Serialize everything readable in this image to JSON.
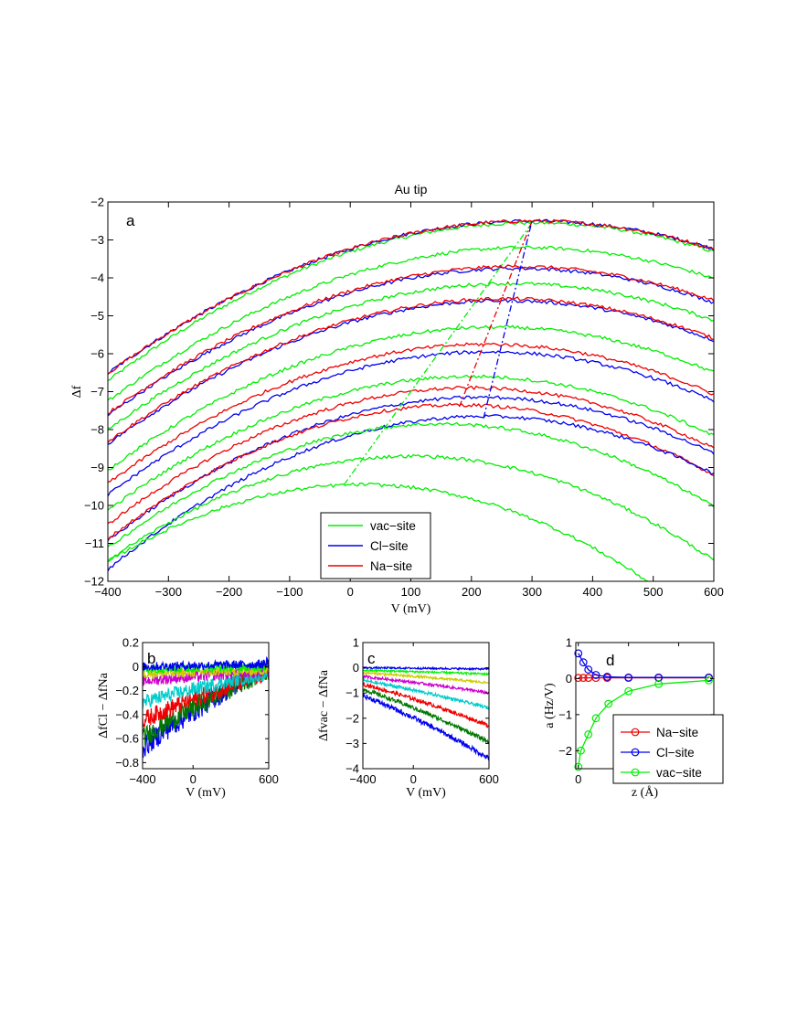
{
  "colors": {
    "vac": "#00ee00",
    "cl": "#0000ee",
    "na": "#ee0000",
    "extra1": "#00cccc",
    "extra2": "#cc00cc",
    "extra3": "#cccc00",
    "extra4": "#007700"
  },
  "chart_data": [
    {
      "id": "a",
      "type": "line",
      "title": "Au tip",
      "panel_letter": "a",
      "xlabel": "V (mV)",
      "ylabel": "Δf",
      "xlim": [
        -400,
        600
      ],
      "ylim": [
        -12,
        -2
      ],
      "xticks": [
        "−400",
        "−300",
        "−200",
        "−100",
        "0",
        "100",
        "200",
        "300",
        "400",
        "500",
        "600"
      ],
      "yticks": [
        "−2",
        "−3",
        "−4",
        "−5",
        "−6",
        "−7",
        "−8",
        "−9",
        "−10",
        "−11",
        "−12"
      ],
      "legend_position": "bottom-center",
      "legend": [
        "vac−site",
        "Cl−site",
        "Na−site"
      ],
      "curves": [
        {
          "site": "vac",
          "peak_v": 300,
          "peak_df": -2.55,
          "curv": 8.5e-06
        },
        {
          "site": "cl",
          "peak_v": 300,
          "peak_df": -2.5,
          "curv": 8.2e-06
        },
        {
          "site": "na",
          "peak_v": 300,
          "peak_df": -2.5,
          "curv": 8.2e-06
        },
        {
          "site": "vac",
          "peak_v": 290,
          "peak_df": -3.2,
          "curv": 8.5e-06
        },
        {
          "site": "cl",
          "peak_v": 275,
          "peak_df": -3.75,
          "curv": 8.5e-06
        },
        {
          "site": "na",
          "peak_v": 275,
          "peak_df": -3.7,
          "curv": 8.5e-06
        },
        {
          "site": "vac",
          "peak_v": 265,
          "peak_df": -4.15,
          "curv": 8.7e-06
        },
        {
          "site": "cl",
          "peak_v": 255,
          "peak_df": -4.6,
          "curv": 8.8e-06
        },
        {
          "site": "na",
          "peak_v": 255,
          "peak_df": -4.55,
          "curv": 8.8e-06
        },
        {
          "site": "vac",
          "peak_v": 240,
          "peak_df": -5.3,
          "curv": 9.2e-06
        },
        {
          "site": "cl",
          "peak_v": 230,
          "peak_df": -5.95,
          "curv": 9.5e-06
        },
        {
          "site": "na",
          "peak_v": 225,
          "peak_df": -5.75,
          "curv": 9.4e-06
        },
        {
          "site": "vac",
          "peak_v": 200,
          "peak_df": -6.6,
          "curv": 9.8e-06
        },
        {
          "site": "na",
          "peak_v": 200,
          "peak_df": -6.9,
          "curv": 1e-05
        },
        {
          "site": "cl",
          "peak_v": 215,
          "peak_df": -7.15,
          "curv": 1e-05
        },
        {
          "site": "na",
          "peak_v": 180,
          "peak_df": -7.35,
          "curv": 1.05e-05
        },
        {
          "site": "cl",
          "peak_v": 220,
          "peak_df": -7.65,
          "curv": 1.05e-05
        },
        {
          "site": "vac",
          "peak_v": 150,
          "peak_df": -7.85,
          "curv": 1.08e-05
        },
        {
          "site": "vac",
          "peak_v": 100,
          "peak_df": -8.7,
          "curv": 1.1e-05
        },
        {
          "site": "vac",
          "peak_v": 20,
          "peak_df": -9.45,
          "curv": 1.15e-05
        }
      ],
      "peak_lines": [
        {
          "site": "vac",
          "x": [
            -10,
            300
          ],
          "y": [
            -9.45,
            -2.55
          ]
        },
        {
          "site": "na",
          "x": [
            180,
            300
          ],
          "y": [
            -7.4,
            -2.5
          ]
        },
        {
          "site": "cl",
          "x": [
            220,
            300
          ],
          "y": [
            -7.7,
            -2.5
          ]
        }
      ]
    },
    {
      "id": "b",
      "type": "line",
      "panel_letter": "b",
      "xlabel": "V (mV)",
      "ylabel": "ΔfCl − ΔfNa",
      "xlim": [
        -400,
        600
      ],
      "ylim": [
        -0.85,
        0.2
      ],
      "xticks": [
        "−400",
        "0",
        "600"
      ],
      "yticks": [
        "0.2",
        "0",
        "−0.2",
        "−0.4",
        "−0.6",
        "−0.8"
      ],
      "curves": [
        {
          "color": "cl",
          "y_at_min": -0.68,
          "y_at_max": 0.02
        },
        {
          "color": "extra4",
          "y_at_min": -0.6,
          "y_at_max": -0.02
        },
        {
          "color": "na",
          "y_at_min": -0.45,
          "y_at_max": -0.05
        },
        {
          "color": "extra1",
          "y_at_min": -0.3,
          "y_at_max": -0.05
        },
        {
          "color": "extra2",
          "y_at_min": -0.12,
          "y_at_max": -0.04
        },
        {
          "color": "extra3",
          "y_at_min": -0.06,
          "y_at_max": -0.03
        },
        {
          "color": "vac",
          "y_at_min": -0.02,
          "y_at_max": 0.0
        },
        {
          "color": "cl",
          "y_at_min": 0.0,
          "y_at_max": 0.02
        }
      ]
    },
    {
      "id": "c",
      "type": "line",
      "panel_letter": "c",
      "xlabel": "V (mV)",
      "ylabel": "Δfvac − ΔfNa",
      "xlim": [
        -400,
        600
      ],
      "ylim": [
        -4,
        1
      ],
      "xticks": [
        "−400",
        "0",
        "600"
      ],
      "yticks": [
        "1",
        "0",
        "−1",
        "−2",
        "−3",
        "−4"
      ],
      "curves": [
        {
          "color": "cl",
          "y_at_min": 0.0,
          "y_at_max": -0.05
        },
        {
          "color": "vac",
          "y_at_min": -0.1,
          "y_at_max": -0.25
        },
        {
          "color": "extra3",
          "y_at_min": -0.2,
          "y_at_max": -0.6
        },
        {
          "color": "extra2",
          "y_at_min": -0.35,
          "y_at_max": -1.0
        },
        {
          "color": "extra1",
          "y_at_min": -0.5,
          "y_at_max": -1.6
        },
        {
          "color": "na",
          "y_at_min": -0.65,
          "y_at_max": -2.3
        },
        {
          "color": "extra4",
          "y_at_min": -0.85,
          "y_at_max": -2.95
        },
        {
          "color": "cl",
          "y_at_min": -1.1,
          "y_at_max": -3.6
        }
      ]
    },
    {
      "id": "d",
      "type": "line",
      "panel_letter": "d",
      "xlabel": "z (Å)",
      "ylabel": "a (Hz/V)",
      "xlim": [
        -0.1,
        5.4
      ],
      "ylim": [
        -2.5,
        1
      ],
      "xticks": [
        "0",
        "2",
        "4"
      ],
      "xtick_values": [
        0,
        2,
        4
      ],
      "yticks": [
        "1",
        "0",
        "−1",
        "−2"
      ],
      "ytick_values": [
        1,
        0,
        -1,
        -2
      ],
      "legend_position": "bottom-right",
      "series": [
        {
          "name": "Na−site",
          "color": "na",
          "x": [
            0,
            0.2,
            0.4,
            0.7,
            1.15,
            2.0,
            3.2,
            5.2
          ],
          "y": [
            0.02,
            0.02,
            0.02,
            0.02,
            0.02,
            0.02,
            0.02,
            0.02
          ]
        },
        {
          "name": "Cl−site",
          "color": "cl",
          "x": [
            0,
            0.2,
            0.4,
            0.7,
            1.15,
            2.0,
            3.2,
            5.2
          ],
          "y": [
            0.7,
            0.45,
            0.25,
            0.1,
            0.05,
            0.03,
            0.03,
            0.03
          ]
        },
        {
          "name": "vac−site",
          "color": "vac",
          "x": [
            0,
            0.1,
            0.4,
            0.7,
            1.2,
            2.0,
            3.2,
            5.2
          ],
          "y": [
            -2.45,
            -2.0,
            -1.55,
            -1.1,
            -0.7,
            -0.35,
            -0.15,
            -0.05
          ]
        }
      ]
    }
  ]
}
